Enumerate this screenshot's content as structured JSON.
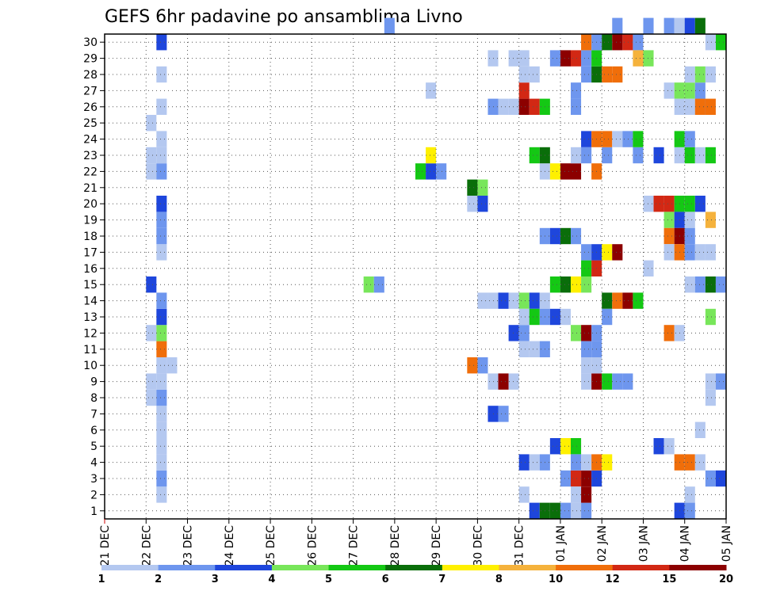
{
  "chart_data": {
    "type": "heatmap",
    "title": "GEFS 6hr padavine po ansamblima Livno",
    "xlabel": "",
    "ylabel": "",
    "x_ticks": [
      "21 DEC",
      "22 DEC",
      "23 DEC",
      "24 DEC",
      "25 DEC",
      "26 DEC",
      "27 DEC",
      "28 DEC",
      "29 DEC",
      "30 DEC",
      "31 DEC",
      "01 JAN",
      "02 JAN",
      "03 JAN",
      "04 JAN",
      "05 JAN"
    ],
    "y_ticks": [
      "1",
      "2",
      "3",
      "4",
      "5",
      "6",
      "7",
      "8",
      "9",
      "10",
      "11",
      "12",
      "13",
      "14",
      "15",
      "16",
      "17",
      "18",
      "19",
      "20",
      "21",
      "22",
      "23",
      "24",
      "25",
      "26",
      "27",
      "28",
      "29",
      "30"
    ],
    "grid": true,
    "legend": {
      "position": "bottom",
      "labels": [
        "1",
        "2",
        "3",
        "4",
        "5",
        "6",
        "7",
        "8",
        "10",
        "12",
        "15",
        "20"
      ],
      "colors": [
        "#b4c8f0",
        "#6e96ee",
        "#1e46dc",
        "#78e65a",
        "#14c814",
        "#0a6e0a",
        "#fff000",
        "#f5b23c",
        "#f06e0a",
        "#d22814",
        "#8c0000"
      ]
    },
    "cells_note_units": "x in forecast step index (6h steps from 21 DEC 00Z), y in ensemble member",
    "cells": [
      [
        5,
        1,
        1
      ],
      [
        5,
        2,
        2
      ],
      [
        5,
        3,
        1
      ],
      [
        5,
        4,
        1
      ],
      [
        5,
        5,
        1
      ],
      [
        5,
        6,
        1
      ],
      [
        4,
        7,
        1
      ],
      [
        5,
        7,
        2
      ],
      [
        4,
        8,
        1
      ],
      [
        5,
        8,
        1
      ],
      [
        5,
        9,
        1
      ],
      [
        6,
        9,
        1
      ],
      [
        5,
        10,
        9
      ],
      [
        4,
        11,
        1
      ],
      [
        5,
        11,
        4
      ],
      [
        5,
        12,
        3
      ],
      [
        5,
        13,
        2
      ],
      [
        4,
        14,
        3
      ],
      [
        5,
        16,
        1
      ],
      [
        5,
        17,
        2
      ],
      [
        5,
        18,
        2
      ],
      [
        5,
        19,
        3
      ],
      [
        4,
        21,
        1
      ],
      [
        5,
        21,
        2
      ],
      [
        4,
        22,
        1
      ],
      [
        5,
        22,
        1
      ],
      [
        5,
        23,
        1
      ],
      [
        4,
        24,
        1
      ],
      [
        5,
        25,
        1
      ],
      [
        5,
        27,
        1
      ],
      [
        5,
        29,
        3
      ],
      [
        25,
        14,
        4
      ],
      [
        26,
        14,
        2
      ],
      [
        30,
        21,
        5
      ],
      [
        31,
        21,
        3
      ],
      [
        32,
        21,
        2
      ],
      [
        31,
        22,
        7
      ],
      [
        35,
        19,
        1
      ],
      [
        36,
        19,
        3
      ],
      [
        35,
        20,
        6
      ],
      [
        36,
        20,
        4
      ],
      [
        35,
        9,
        9
      ],
      [
        36,
        9,
        2
      ],
      [
        31,
        26,
        1
      ],
      [
        27,
        30,
        2
      ],
      [
        36,
        13,
        1
      ],
      [
        37,
        13,
        1
      ],
      [
        38,
        13,
        3
      ],
      [
        39,
        13,
        1
      ],
      [
        40,
        13,
        4
      ],
      [
        41,
        13,
        3
      ],
      [
        42,
        13,
        1
      ],
      [
        37,
        8,
        1
      ],
      [
        38,
        8,
        11
      ],
      [
        39,
        8,
        1
      ],
      [
        37,
        6,
        3
      ],
      [
        38,
        6,
        2
      ],
      [
        37,
        25,
        2
      ],
      [
        38,
        25,
        1
      ],
      [
        39,
        25,
        1
      ],
      [
        40,
        25,
        11
      ],
      [
        41,
        25,
        10
      ],
      [
        42,
        25,
        5
      ],
      [
        40,
        26,
        10
      ],
      [
        37,
        28,
        1
      ],
      [
        39,
        28,
        1
      ],
      [
        40,
        28,
        1
      ],
      [
        40,
        27,
        1
      ],
      [
        41,
        27,
        1
      ],
      [
        39,
        11,
        3
      ],
      [
        40,
        11,
        2
      ],
      [
        40,
        10,
        1
      ],
      [
        41,
        10,
        1
      ],
      [
        42,
        10,
        2
      ],
      [
        40,
        12,
        1
      ],
      [
        41,
        12,
        5
      ],
      [
        42,
        12,
        2
      ],
      [
        43,
        12,
        3
      ],
      [
        44,
        12,
        1
      ],
      [
        40,
        1,
        1
      ],
      [
        40,
        3,
        3
      ],
      [
        41,
        3,
        1
      ],
      [
        42,
        3,
        2
      ],
      [
        41,
        0,
        3
      ],
      [
        42,
        0,
        6
      ],
      [
        43,
        0,
        6
      ],
      [
        44,
        0,
        2
      ],
      [
        45,
        0,
        1
      ],
      [
        46,
        0,
        2
      ],
      [
        43,
        4,
        3
      ],
      [
        44,
        4,
        7
      ],
      [
        45,
        4,
        5
      ],
      [
        44,
        2,
        2
      ],
      [
        45,
        2,
        10
      ],
      [
        46,
        2,
        11
      ],
      [
        47,
        2,
        3
      ],
      [
        45,
        1,
        1
      ],
      [
        46,
        1,
        11
      ],
      [
        45,
        3,
        2
      ],
      [
        46,
        3,
        1
      ],
      [
        47,
        3,
        9
      ],
      [
        48,
        3,
        7
      ],
      [
        46,
        8,
        1
      ],
      [
        47,
        8,
        11
      ],
      [
        48,
        8,
        5
      ],
      [
        49,
        8,
        2
      ],
      [
        50,
        8,
        2
      ],
      [
        45,
        11,
        4
      ],
      [
        46,
        11,
        11
      ],
      [
        47,
        11,
        2
      ],
      [
        46,
        10,
        2
      ],
      [
        47,
        10,
        2
      ],
      [
        46,
        9,
        1
      ],
      [
        47,
        9,
        1
      ],
      [
        43,
        14,
        5
      ],
      [
        44,
        14,
        6
      ],
      [
        45,
        14,
        7
      ],
      [
        46,
        14,
        4
      ],
      [
        46,
        15,
        5
      ],
      [
        47,
        15,
        10
      ],
      [
        46,
        16,
        2
      ],
      [
        47,
        16,
        3
      ],
      [
        48,
        16,
        7
      ],
      [
        49,
        16,
        11
      ],
      [
        42,
        17,
        2
      ],
      [
        43,
        17,
        3
      ],
      [
        44,
        17,
        6
      ],
      [
        45,
        17,
        2
      ],
      [
        48,
        13,
        6
      ],
      [
        49,
        13,
        9
      ],
      [
        50,
        13,
        11
      ],
      [
        51,
        13,
        5
      ],
      [
        48,
        12,
        2
      ],
      [
        42,
        21,
        1
      ],
      [
        43,
        21,
        7
      ],
      [
        44,
        21,
        11
      ],
      [
        45,
        21,
        11
      ],
      [
        47,
        21,
        9
      ],
      [
        41,
        22,
        5
      ],
      [
        42,
        22,
        6
      ],
      [
        45,
        22,
        1
      ],
      [
        46,
        22,
        2
      ],
      [
        48,
        22,
        2
      ],
      [
        51,
        22,
        2
      ],
      [
        53,
        22,
        3
      ],
      [
        55,
        22,
        1
      ],
      [
        56,
        22,
        5
      ],
      [
        57,
        22,
        1
      ],
      [
        58,
        22,
        5
      ],
      [
        46,
        23,
        3
      ],
      [
        47,
        23,
        9
      ],
      [
        48,
        23,
        9
      ],
      [
        49,
        23,
        1
      ],
      [
        50,
        23,
        2
      ],
      [
        51,
        23,
        5
      ],
      [
        55,
        23,
        5
      ],
      [
        56,
        23,
        2
      ],
      [
        45,
        25,
        2
      ],
      [
        45,
        26,
        2
      ],
      [
        46,
        27,
        2
      ],
      [
        46,
        28,
        2
      ],
      [
        47,
        27,
        6
      ],
      [
        47,
        28,
        5
      ],
      [
        48,
        27,
        9
      ],
      [
        49,
        27,
        9
      ],
      [
        43,
        28,
        2
      ],
      [
        44,
        28,
        11
      ],
      [
        45,
        28,
        10
      ],
      [
        46,
        29,
        9
      ],
      [
        47,
        29,
        2
      ],
      [
        48,
        29,
        6
      ],
      [
        49,
        29,
        11
      ],
      [
        50,
        29,
        10
      ],
      [
        51,
        29,
        2
      ],
      [
        49,
        30,
        2
      ],
      [
        52,
        30,
        2
      ],
      [
        54,
        30,
        2
      ],
      [
        55,
        30,
        1
      ],
      [
        56,
        30,
        3
      ],
      [
        57,
        30,
        6
      ],
      [
        51,
        28,
        8
      ],
      [
        52,
        28,
        4
      ],
      [
        54,
        26,
        1
      ],
      [
        55,
        26,
        4
      ],
      [
        56,
        26,
        4
      ],
      [
        57,
        26,
        2
      ],
      [
        57,
        25,
        2
      ],
      [
        55,
        25,
        1
      ],
      [
        56,
        25,
        1
      ],
      [
        57,
        25,
        9
      ],
      [
        58,
        25,
        9
      ],
      [
        56,
        27,
        1
      ],
      [
        57,
        27,
        4
      ],
      [
        58,
        27,
        1
      ],
      [
        52,
        19,
        1
      ],
      [
        53,
        19,
        10
      ],
      [
        54,
        19,
        10
      ],
      [
        55,
        19,
        5
      ],
      [
        56,
        19,
        5
      ],
      [
        57,
        19,
        3
      ],
      [
        54,
        18,
        4
      ],
      [
        55,
        18,
        3
      ],
      [
        56,
        18,
        1
      ],
      [
        58,
        18,
        8
      ],
      [
        54,
        17,
        9
      ],
      [
        55,
        17,
        11
      ],
      [
        56,
        17,
        2
      ],
      [
        54,
        16,
        1
      ],
      [
        55,
        16,
        9
      ],
      [
        56,
        16,
        2
      ],
      [
        57,
        16,
        1
      ],
      [
        58,
        16,
        1
      ],
      [
        56,
        14,
        1
      ],
      [
        57,
        14,
        2
      ],
      [
        58,
        14,
        6
      ],
      [
        59,
        14,
        2
      ],
      [
        52,
        15,
        1
      ],
      [
        58,
        12,
        4
      ],
      [
        54,
        11,
        9
      ],
      [
        55,
        11,
        1
      ],
      [
        53,
        4,
        3
      ],
      [
        54,
        4,
        1
      ],
      [
        55,
        3,
        9
      ],
      [
        56,
        3,
        9
      ],
      [
        57,
        3,
        1
      ],
      [
        58,
        2,
        2
      ],
      [
        59,
        2,
        3
      ],
      [
        56,
        1,
        1
      ],
      [
        55,
        0,
        3
      ],
      [
        56,
        0,
        2
      ],
      [
        57,
        5,
        1
      ],
      [
        58,
        8,
        1
      ],
      [
        59,
        8,
        2
      ],
      [
        58,
        7,
        1
      ],
      [
        59,
        29,
        5
      ],
      [
        58,
        29,
        1
      ]
    ]
  }
}
